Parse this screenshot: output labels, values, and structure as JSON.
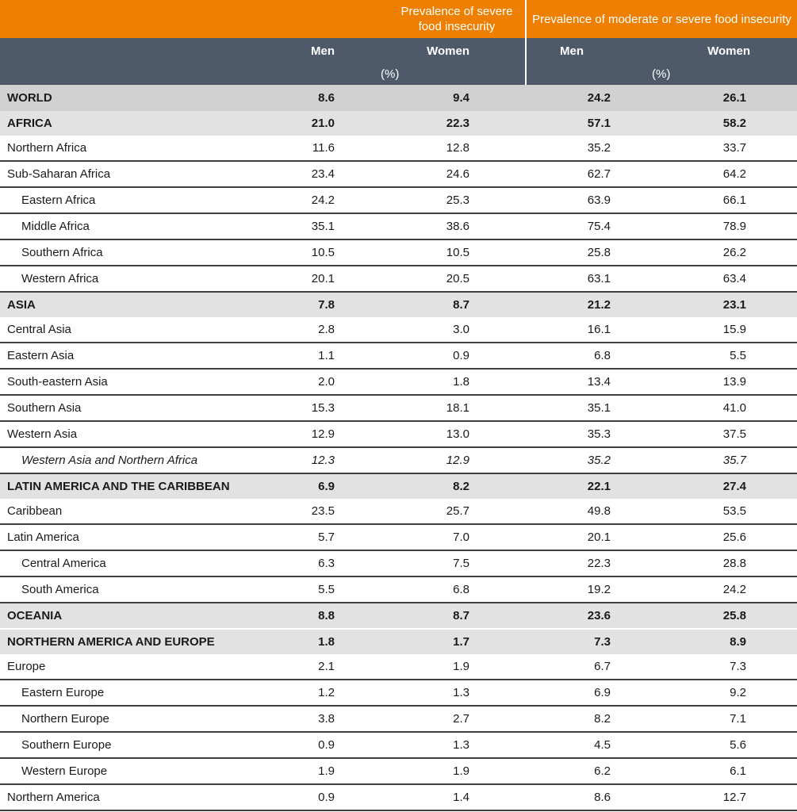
{
  "header": {
    "group1": "Prevalence of severe food insecurity",
    "group2": "Prevalence of moderate or severe food insecurity",
    "men": "Men",
    "women": "Women",
    "unit": "(%)"
  },
  "colors": {
    "header_orange": "#ee7f00",
    "header_slate": "#4e5a6a",
    "world_row": "#d1d1d1",
    "region_row": "#e2e2e2"
  },
  "rows": [
    {
      "name": "WORLD",
      "type": "world",
      "values": [
        "8.6",
        "9.4",
        "24.2",
        "26.1"
      ]
    },
    {
      "name": "AFRICA",
      "type": "region",
      "values": [
        "21.0",
        "22.3",
        "57.1",
        "58.2"
      ]
    },
    {
      "name": "Northern Africa",
      "type": "sub",
      "values": [
        "11.6",
        "12.8",
        "35.2",
        "33.7"
      ]
    },
    {
      "name": "Sub-Saharan Africa",
      "type": "sub",
      "values": [
        "23.4",
        "24.6",
        "62.7",
        "64.2"
      ]
    },
    {
      "name": "Eastern Africa",
      "type": "indent",
      "values": [
        "24.2",
        "25.3",
        "63.9",
        "66.1"
      ]
    },
    {
      "name": "Middle Africa",
      "type": "indent",
      "values": [
        "35.1",
        "38.6",
        "75.4",
        "78.9"
      ]
    },
    {
      "name": "Southern Africa",
      "type": "indent",
      "values": [
        "10.5",
        "10.5",
        "25.8",
        "26.2"
      ]
    },
    {
      "name": "Western Africa",
      "type": "indent",
      "values": [
        "20.1",
        "20.5",
        "63.1",
        "63.4"
      ]
    },
    {
      "name": "ASIA",
      "type": "region",
      "values": [
        "7.8",
        "8.7",
        "21.2",
        "23.1"
      ]
    },
    {
      "name": "Central Asia",
      "type": "sub",
      "values": [
        "2.8",
        "3.0",
        "16.1",
        "15.9"
      ]
    },
    {
      "name": "Eastern Asia",
      "type": "sub",
      "values": [
        "1.1",
        "0.9",
        "6.8",
        "5.5"
      ]
    },
    {
      "name": "South-eastern Asia",
      "type": "sub",
      "values": [
        "2.0",
        "1.8",
        "13.4",
        "13.9"
      ]
    },
    {
      "name": "Southern Asia",
      "type": "sub",
      "values": [
        "15.3",
        "18.1",
        "35.1",
        "41.0"
      ]
    },
    {
      "name": "Western Asia",
      "type": "sub",
      "values": [
        "12.9",
        "13.0",
        "35.3",
        "37.5"
      ]
    },
    {
      "name": "Western Asia and Northern Africa",
      "type": "italic",
      "values": [
        "12.3",
        "12.9",
        "35.2",
        "35.7"
      ]
    },
    {
      "name": "LATIN AMERICA AND THE CARIBBEAN",
      "type": "region",
      "values": [
        "6.9",
        "8.2",
        "22.1",
        "27.4"
      ]
    },
    {
      "name": "Caribbean",
      "type": "sub",
      "values": [
        "23.5",
        "25.7",
        "49.8",
        "53.5"
      ]
    },
    {
      "name": "Latin America",
      "type": "sub",
      "values": [
        "5.7",
        "7.0",
        "20.1",
        "25.6"
      ]
    },
    {
      "name": "Central America",
      "type": "indent",
      "values": [
        "6.3",
        "7.5",
        "22.3",
        "28.8"
      ]
    },
    {
      "name": "South America",
      "type": "indent",
      "values": [
        "5.5",
        "6.8",
        "19.2",
        "24.2"
      ]
    },
    {
      "name": "OCEANIA",
      "type": "region",
      "values": [
        "8.8",
        "8.7",
        "23.6",
        "25.8"
      ]
    },
    {
      "name": "NORTHERN AMERICA AND EUROPE",
      "type": "region",
      "values": [
        "1.8",
        "1.7",
        "7.3",
        "8.9"
      ]
    },
    {
      "name": "Europe",
      "type": "sub",
      "values": [
        "2.1",
        "1.9",
        "6.7",
        "7.3"
      ]
    },
    {
      "name": "Eastern Europe",
      "type": "indent",
      "values": [
        "1.2",
        "1.3",
        "6.9",
        "9.2"
      ]
    },
    {
      "name": "Northern Europe",
      "type": "indent",
      "values": [
        "3.8",
        "2.7",
        "8.2",
        "7.1"
      ]
    },
    {
      "name": "Southern Europe",
      "type": "indent",
      "values": [
        "0.9",
        "1.3",
        "4.5",
        "5.6"
      ]
    },
    {
      "name": "Western Europe",
      "type": "indent",
      "values": [
        "1.9",
        "1.9",
        "6.2",
        "6.1"
      ]
    },
    {
      "name": "Northern America",
      "type": "sub",
      "values": [
        "0.9",
        "1.4",
        "8.6",
        "12.7"
      ]
    }
  ]
}
